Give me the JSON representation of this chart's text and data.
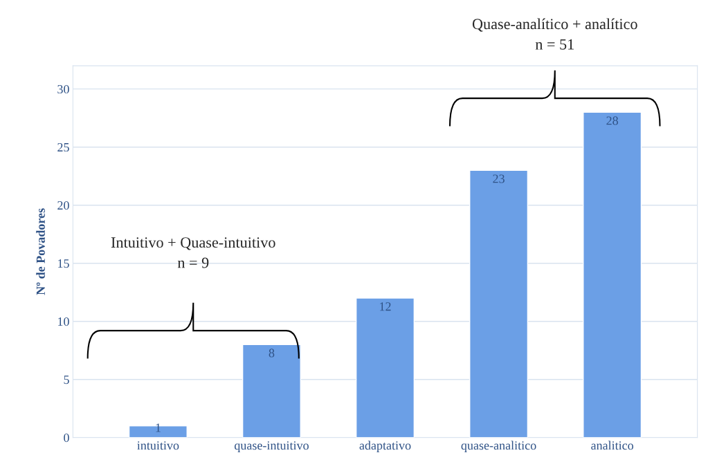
{
  "chart_data": {
    "type": "bar",
    "ylabel": "Nº de Povadores",
    "categories": [
      "intuitivo",
      "quase-intuitivo",
      "adaptativo",
      "quase-analitico",
      "analitico"
    ],
    "values": [
      1,
      8,
      12,
      23,
      28
    ],
    "color": "#6b9fe6",
    "ylim": [
      0,
      32
    ],
    "yticks": [
      0,
      5,
      10,
      15,
      20,
      25,
      30
    ],
    "grid": "y",
    "data_labels": true,
    "annotations": [
      "Intuitivo + Quase-intuitivo\nn = 9",
      "Quase-analítico + analítico\nn = 51"
    ]
  }
}
